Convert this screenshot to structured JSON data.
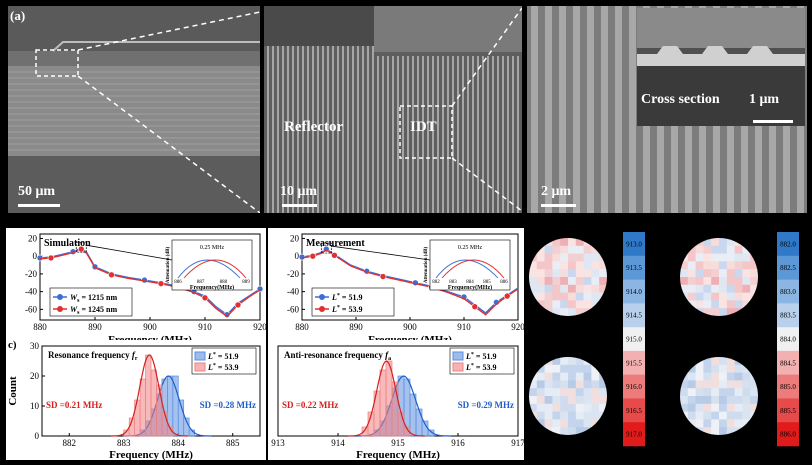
{
  "sem_panels": {
    "panel_label": "(a)",
    "left_scale": "50 μm",
    "middle_labels": {
      "reflector": "Reflector",
      "idt": "IDT"
    },
    "middle_scale": "10 μm",
    "right_scale": "2 μm",
    "inset_label": "Cross section",
    "inset_scale": "1 μm"
  },
  "chart_data": [
    {
      "type": "line",
      "panel": "b-left",
      "annotation": "Simulation",
      "xlabel": "Frequency (MHz)",
      "xlim": [
        880,
        920
      ],
      "xticks": [
        880,
        890,
        900,
        910,
        920
      ],
      "ylim": [
        -72,
        25
      ],
      "yticks": [
        20,
        0,
        -20,
        -40,
        -60
      ],
      "series": [
        {
          "name": "W_s = 1215 nm",
          "color": "#3a6fd8",
          "x": [
            880,
            882,
            884,
            886,
            887.5,
            888.5,
            890,
            893,
            896,
            899,
            902,
            905,
            908,
            910,
            912,
            914,
            916,
            918,
            920
          ],
          "y": [
            -2,
            -1,
            2,
            5,
            9,
            4,
            -12,
            -20,
            -24,
            -27,
            -30,
            -34,
            -40,
            -45,
            -57,
            -66,
            -53,
            -45,
            -37
          ]
        },
        {
          "name": "W_s = 1245 nm",
          "color": "#e03030",
          "x": [
            880,
            882,
            884,
            886,
            887.5,
            888.5,
            890,
            893,
            896,
            899,
            902,
            905,
            908,
            910,
            912,
            914,
            916,
            918,
            920
          ],
          "y": [
            -3,
            -2,
            1,
            4,
            8,
            3,
            -13,
            -21,
            -25,
            -28,
            -31,
            -35,
            -41,
            -47,
            -59,
            -68,
            -55,
            -46,
            -38
          ]
        }
      ],
      "inset": {
        "xlabel": "Frequency(MHz)",
        "ylabel": "Attenuation (dB)",
        "annotation": "0.25 MHz",
        "xticks": [
          886,
          887,
          888,
          889
        ]
      }
    },
    {
      "type": "line",
      "panel": "b-right",
      "annotation": "Measurement",
      "xlabel": "Frequency (MHz)",
      "xlim": [
        880,
        920
      ],
      "xticks": [
        880,
        890,
        900,
        910,
        920
      ],
      "ylim": [
        -72,
        25
      ],
      "yticks": [
        20,
        0,
        -20,
        -40,
        -60
      ],
      "series": [
        {
          "name": "L* = 51.9",
          "color": "#3a6fd8",
          "x": [
            880,
            882,
            883.5,
            884.5,
            886,
            889,
            892,
            895,
            898,
            901,
            904,
            907,
            910,
            912,
            914,
            916,
            918,
            920
          ],
          "y": [
            -1,
            1,
            4,
            8,
            2,
            -10,
            -17,
            -22,
            -26,
            -30,
            -34,
            -40,
            -46,
            -55,
            -64,
            -52,
            -44,
            -36
          ]
        },
        {
          "name": "L* = 53.9",
          "color": "#e03030",
          "x": [
            880,
            882,
            883.5,
            884.5,
            886,
            889,
            892,
            895,
            898,
            901,
            904,
            907,
            910,
            912,
            914,
            916,
            918,
            920
          ],
          "y": [
            -2,
            0,
            3,
            7,
            1,
            -11,
            -18,
            -23,
            -27,
            -31,
            -35,
            -41,
            -48,
            -57,
            -66,
            -54,
            -45,
            -37
          ]
        }
      ],
      "inset": {
        "xlabel": "Frequency(MHz)",
        "ylabel": "Attenuation (dB)",
        "annotation": "0.25 MHz",
        "xticks": [
          882,
          883,
          884,
          885,
          886
        ]
      }
    },
    {
      "type": "bar",
      "panel": "c-left",
      "panel_label": "c)",
      "title": "Resonance frequency f_r",
      "xlabel": "Frequency (MHz)",
      "ylabel": "Count",
      "xlim": [
        881.5,
        885.5
      ],
      "xticks": [
        882,
        883,
        884,
        885
      ],
      "ylim": [
        0,
        30
      ],
      "yticks": [
        0,
        10,
        20,
        30
      ],
      "bin_width": 0.1,
      "series": [
        {
          "name": "L* = 51.9",
          "color": "#5b8fe0",
          "sd_label": "SD =0.28 MHz",
          "bins": [
            883.3,
            883.4,
            883.5,
            883.6,
            883.7,
            883.8,
            883.9,
            884.0,
            884.1,
            884.2
          ],
          "counts": [
            2,
            5,
            9,
            14,
            19,
            20,
            20,
            12,
            6,
            2
          ]
        },
        {
          "name": "L* = 53.9",
          "color": "#f08080",
          "sd_label": "SD =0.21 MHz",
          "bins": [
            883.0,
            883.1,
            883.2,
            883.3,
            883.4,
            883.5,
            883.6,
            883.7,
            883.8
          ],
          "counts": [
            2,
            6,
            12,
            19,
            27,
            22,
            17,
            8,
            3
          ]
        }
      ]
    },
    {
      "type": "bar",
      "panel": "c-right",
      "title": "Anti-resonance frequency f_a",
      "xlabel": "Frequency (MHz)",
      "xlim": [
        913,
        917
      ],
      "xticks": [
        913,
        914,
        915,
        916,
        917
      ],
      "ylim": [
        0,
        30
      ],
      "bin_width": 0.1,
      "series": [
        {
          "name": "L* = 51.9",
          "color": "#5b8fe0",
          "sd_label": "SD =0.29 MHz",
          "bins": [
            914.6,
            914.7,
            914.8,
            914.9,
            915.0,
            915.1,
            915.2,
            915.3,
            915.4,
            915.5
          ],
          "counts": [
            2,
            5,
            10,
            16,
            20,
            19,
            14,
            9,
            5,
            2
          ]
        },
        {
          "name": "L* = 53.9",
          "color": "#f08080",
          "sd_label": "SD =0.22 MHz",
          "bins": [
            914.4,
            914.5,
            914.6,
            914.7,
            914.8,
            914.9,
            915.0,
            915.1
          ],
          "counts": [
            3,
            8,
            15,
            22,
            25,
            18,
            8,
            3
          ]
        }
      ]
    }
  ],
  "wafer_maps": {
    "colorbar1_labels": [
      "913.0",
      "913.5",
      "914.0",
      "914.5",
      "915.0",
      "915.5",
      "916.0",
      "916.5",
      "917.0"
    ],
    "colorbar2_labels": [
      "882.0",
      "882.5",
      "883.0",
      "883.5",
      "884.0",
      "884.5",
      "885.0",
      "885.5",
      "886.0"
    ]
  }
}
